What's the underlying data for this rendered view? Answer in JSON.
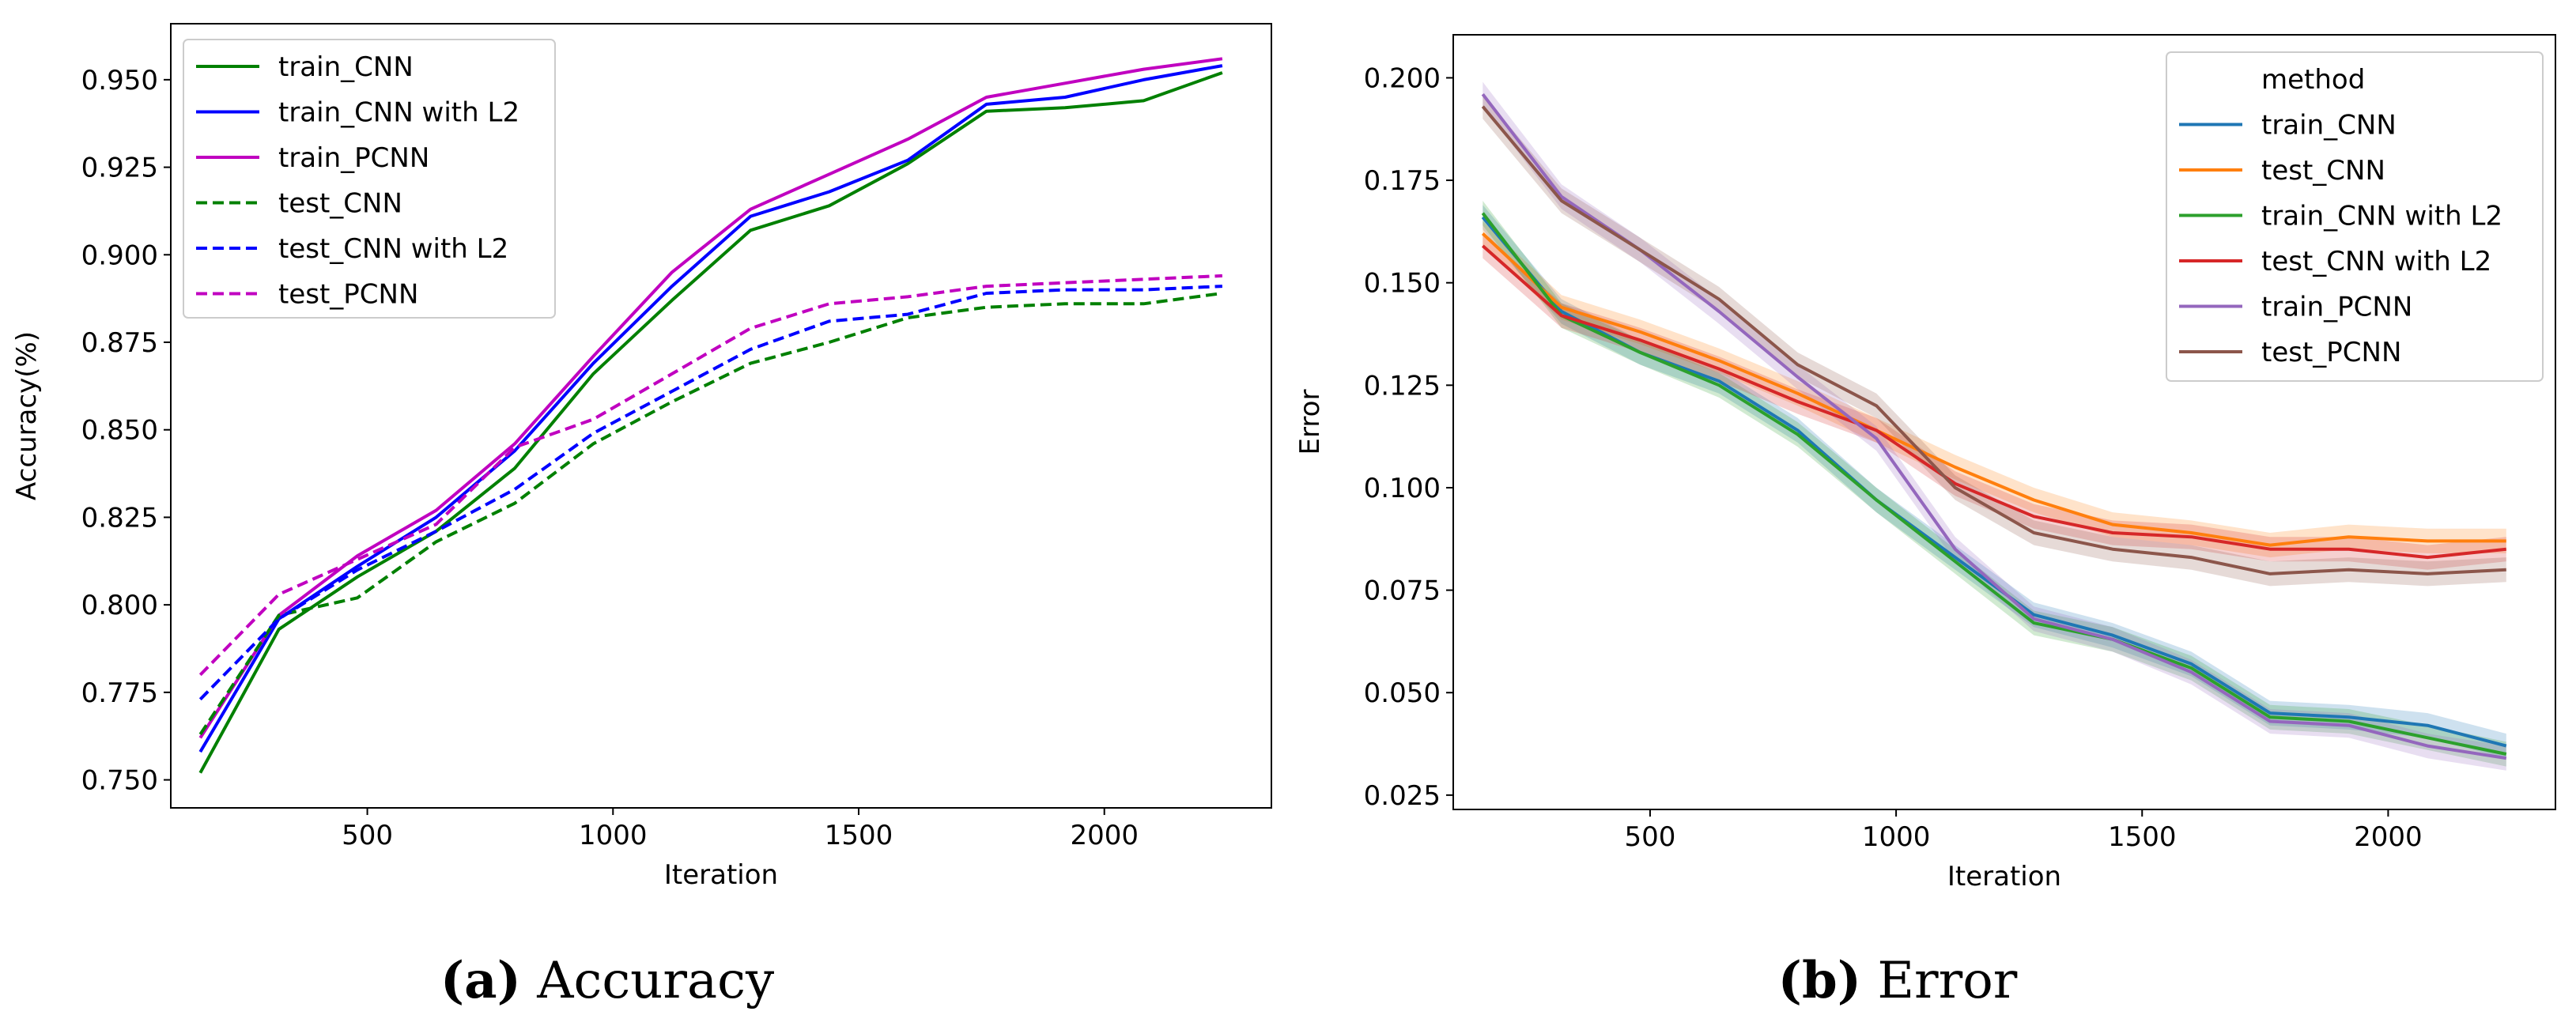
{
  "chart_data": [
    {
      "type": "line",
      "caption_label": "(a)",
      "caption_text": "Accuracy",
      "xlabel": "Iteration",
      "ylabel": "Accuracy(%)",
      "xlim": [
        100,
        2340
      ],
      "ylim": [
        0.742,
        0.966
      ],
      "xticks": [
        500,
        1000,
        1500,
        2000
      ],
      "yticks": [
        0.75,
        0.775,
        0.8,
        0.825,
        0.85,
        0.875,
        0.9,
        0.925,
        0.95
      ],
      "ytick_labels": [
        "0.750",
        "0.775",
        "0.800",
        "0.825",
        "0.850",
        "0.875",
        "0.900",
        "0.925",
        "0.950"
      ],
      "legend_position": "upper-left",
      "x": [
        160,
        320,
        480,
        640,
        800,
        960,
        1120,
        1280,
        1440,
        1600,
        1760,
        1920,
        2080,
        2240
      ],
      "series": [
        {
          "name": "train_CNN",
          "color": "#008000",
          "dash": "solid",
          "values": [
            0.752,
            0.793,
            0.808,
            0.821,
            0.839,
            0.866,
            0.887,
            0.907,
            0.914,
            0.926,
            0.941,
            0.942,
            0.944,
            0.952
          ]
        },
        {
          "name": "train_CNN with L2",
          "color": "#0000ff",
          "dash": "solid",
          "values": [
            0.758,
            0.796,
            0.811,
            0.825,
            0.844,
            0.869,
            0.891,
            0.911,
            0.918,
            0.927,
            0.943,
            0.945,
            0.95,
            0.954
          ]
        },
        {
          "name": "train_PCNN",
          "color": "#c000c0",
          "dash": "solid",
          "values": [
            0.762,
            0.797,
            0.814,
            0.827,
            0.846,
            0.871,
            0.895,
            0.913,
            0.923,
            0.933,
            0.945,
            0.949,
            0.953,
            0.956
          ]
        },
        {
          "name": "test_CNN",
          "color": "#008000",
          "dash": "dashed",
          "values": [
            0.763,
            0.797,
            0.802,
            0.818,
            0.829,
            0.846,
            0.858,
            0.869,
            0.875,
            0.882,
            0.885,
            0.886,
            0.886,
            0.889
          ]
        },
        {
          "name": "test_CNN with L2",
          "color": "#0000ff",
          "dash": "dashed",
          "values": [
            0.773,
            0.796,
            0.81,
            0.821,
            0.833,
            0.849,
            0.861,
            0.873,
            0.881,
            0.883,
            0.889,
            0.89,
            0.89,
            0.891
          ]
        },
        {
          "name": "test_PCNN",
          "color": "#c000c0",
          "dash": "dashed",
          "values": [
            0.78,
            0.803,
            0.813,
            0.823,
            0.845,
            0.853,
            0.866,
            0.879,
            0.886,
            0.888,
            0.891,
            0.892,
            0.893,
            0.894
          ]
        }
      ]
    },
    {
      "type": "line",
      "caption_label": "(b)",
      "caption_text": "Error",
      "xlabel": "Iteration",
      "ylabel": "Error",
      "xlim": [
        100,
        2340
      ],
      "ylim": [
        0.0215,
        0.2105
      ],
      "xticks": [
        500,
        1000,
        1500,
        2000
      ],
      "yticks": [
        0.025,
        0.05,
        0.075,
        0.1,
        0.125,
        0.15,
        0.175,
        0.2
      ],
      "ytick_labels": [
        "0.025",
        "0.050",
        "0.075",
        "0.100",
        "0.125",
        "0.150",
        "0.175",
        "0.200"
      ],
      "legend_title": "method",
      "legend_position": "upper-right",
      "band_half_width": 0.003,
      "x": [
        160,
        320,
        480,
        640,
        800,
        960,
        1120,
        1280,
        1440,
        1600,
        1760,
        1920,
        2080,
        2240
      ],
      "series": [
        {
          "name": "train_CNN",
          "color": "#1f77b4",
          "values": [
            0.166,
            0.143,
            0.133,
            0.126,
            0.114,
            0.097,
            0.083,
            0.069,
            0.064,
            0.057,
            0.045,
            0.044,
            0.042,
            0.037
          ]
        },
        {
          "name": "test_CNN",
          "color": "#ff7f0e",
          "values": [
            0.162,
            0.144,
            0.138,
            0.131,
            0.123,
            0.114,
            0.105,
            0.097,
            0.091,
            0.089,
            0.086,
            0.088,
            0.087,
            0.087
          ]
        },
        {
          "name": "train_CNN with L2",
          "color": "#2ca02c",
          "values": [
            0.167,
            0.142,
            0.133,
            0.125,
            0.113,
            0.097,
            0.082,
            0.067,
            0.063,
            0.056,
            0.044,
            0.043,
            0.039,
            0.035
          ]
        },
        {
          "name": "test_CNN with L2",
          "color": "#d62728",
          "values": [
            0.159,
            0.142,
            0.136,
            0.129,
            0.121,
            0.114,
            0.101,
            0.093,
            0.089,
            0.088,
            0.085,
            0.085,
            0.083,
            0.085
          ]
        },
        {
          "name": "train_PCNN",
          "color": "#9467bd",
          "values": [
            0.196,
            0.171,
            0.158,
            0.143,
            0.127,
            0.112,
            0.085,
            0.068,
            0.063,
            0.055,
            0.043,
            0.042,
            0.037,
            0.034
          ]
        },
        {
          "name": "test_PCNN",
          "color": "#8c564b",
          "values": [
            0.193,
            0.17,
            0.158,
            0.146,
            0.13,
            0.12,
            0.1,
            0.089,
            0.085,
            0.083,
            0.079,
            0.08,
            0.079,
            0.08
          ]
        }
      ]
    }
  ]
}
